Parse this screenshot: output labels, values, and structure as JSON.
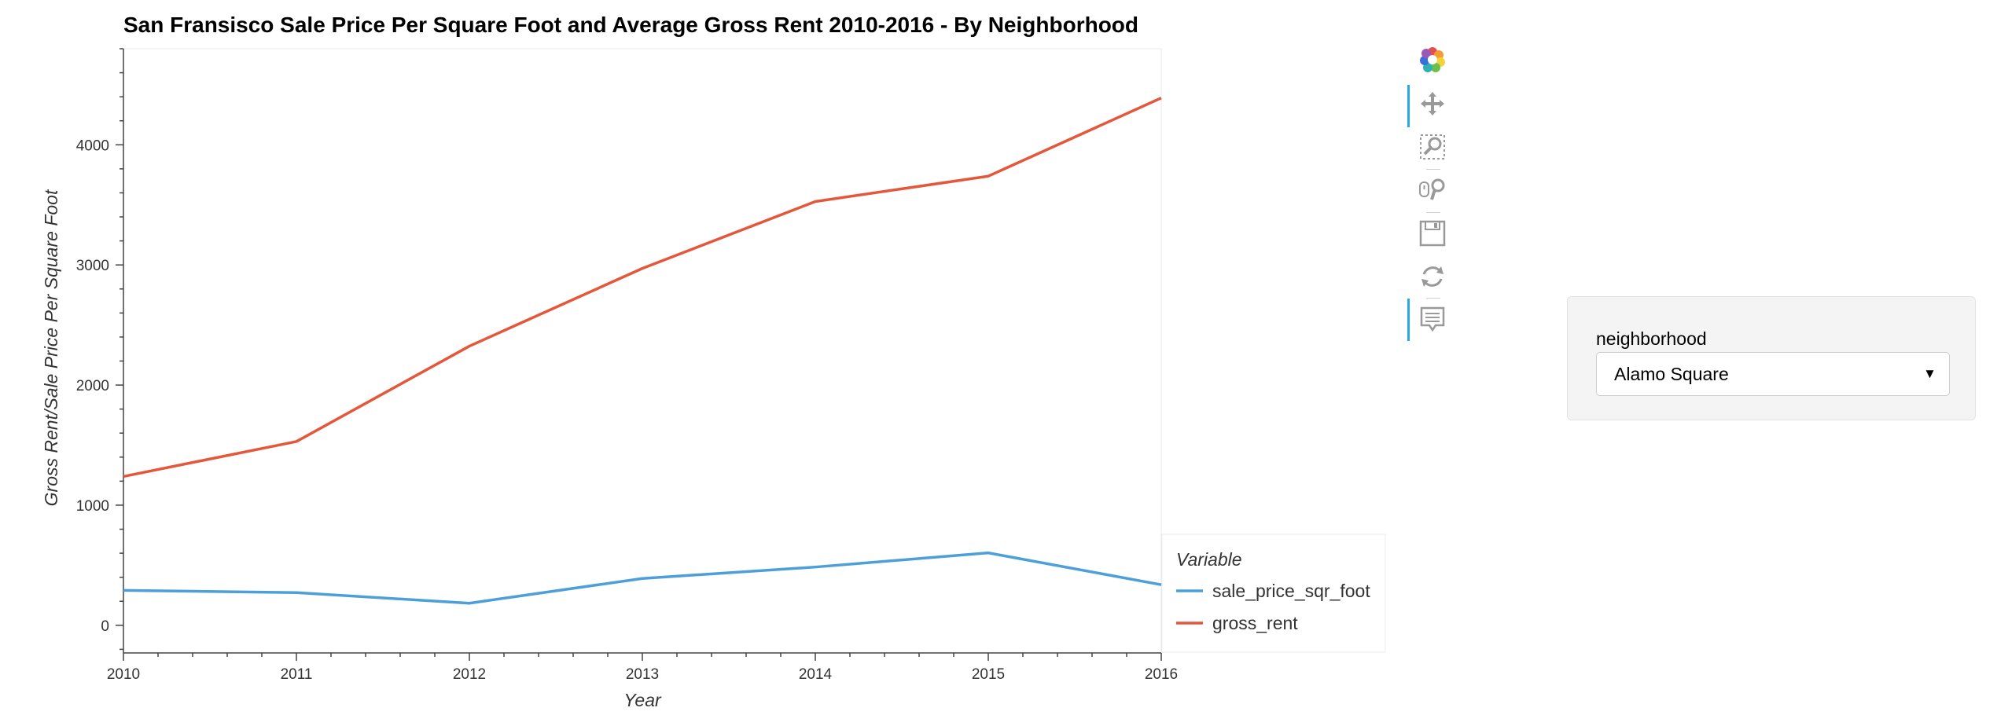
{
  "chart_data": {
    "type": "line",
    "title": "San Fransisco Sale Price Per Square Foot and Average Gross Rent 2010-2016 - By Neighborhood",
    "xlabel": "Year",
    "ylabel": "Gross Rent/Sale Price Per Square Foot",
    "x": [
      2010,
      2011,
      2012,
      2013,
      2014,
      2015,
      2016
    ],
    "xlim": [
      2010,
      2016
    ],
    "ylim": [
      -230,
      4800
    ],
    "x_ticks": [
      2010,
      2011,
      2012,
      2013,
      2014,
      2015,
      2016
    ],
    "y_ticks": [
      0,
      1000,
      2000,
      3000,
      4000
    ],
    "legend_title": "Variable",
    "legend_position": "bottom-right-outside",
    "grid": false,
    "series": [
      {
        "name": "sale_price_sqr_foot",
        "color": "#4c9fd8",
        "values": [
          291,
          272,
          184,
          390,
          485,
          603,
          338
        ]
      },
      {
        "name": "gross_rent",
        "color": "#e4573a",
        "values": [
          1239,
          1530,
          2324,
          2971,
          3528,
          3739,
          4390
        ]
      }
    ]
  },
  "toolbar": {
    "tools": [
      {
        "name": "bokeh-logo-icon"
      },
      {
        "name": "pan-icon"
      },
      {
        "name": "box-zoom-icon"
      },
      {
        "name": "wheel-zoom-icon"
      },
      {
        "name": "save-icon"
      },
      {
        "name": "reset-icon"
      },
      {
        "name": "hover-icon"
      }
    ]
  },
  "widget": {
    "label": "neighborhood",
    "selected": "Alamo Square"
  }
}
